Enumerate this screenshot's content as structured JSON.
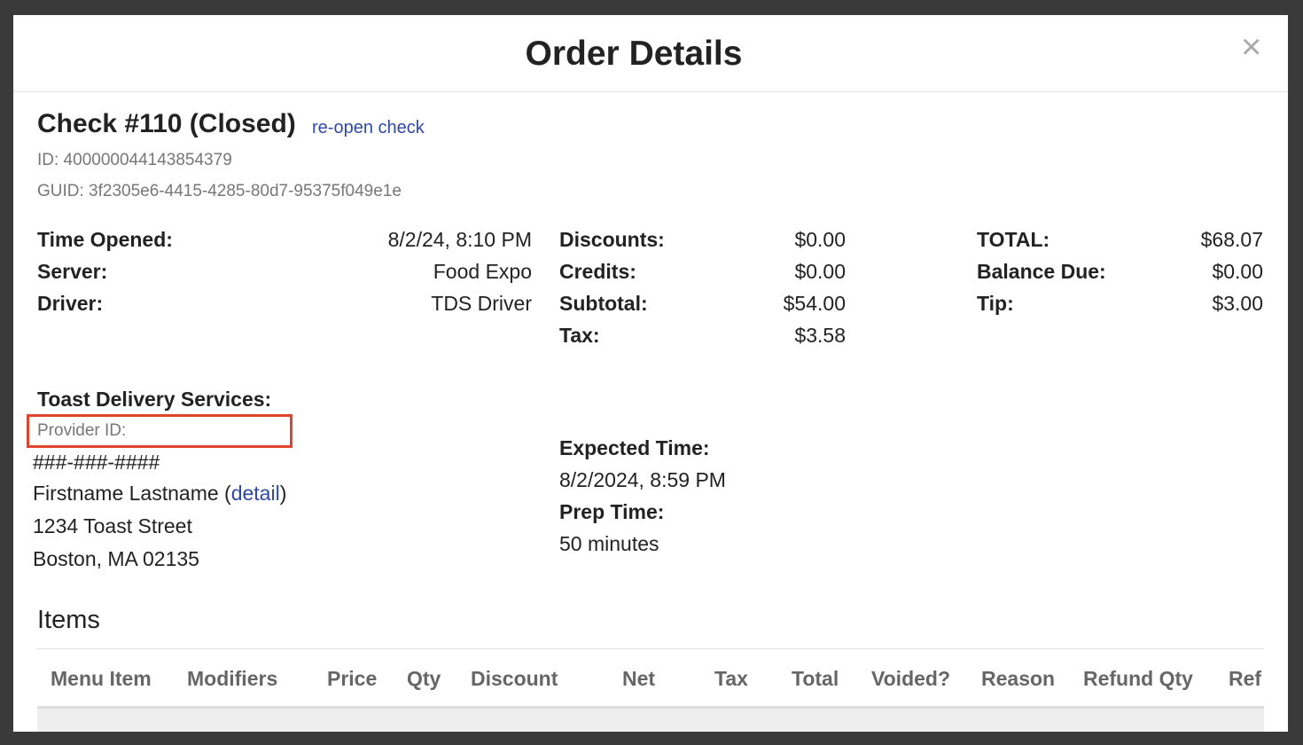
{
  "modal": {
    "title": "Order Details",
    "close": "×"
  },
  "check": {
    "heading": "Check #110 (Closed)",
    "reopen": "re-open check",
    "id": "ID: 400000044143854379",
    "guid": "GUID: 3f2305e6-4415-4285-80d7-95375f049e1e"
  },
  "summary": {
    "columns": [
      [
        {
          "label": "Time Opened:",
          "value": "8/2/24, 8:10 PM"
        },
        {
          "label": "Server:",
          "value": "Food Expo"
        },
        {
          "label": "Driver:",
          "value": "TDS Driver"
        }
      ],
      [
        {
          "label": "Discounts:",
          "value": "$0.00"
        },
        {
          "label": "Credits:",
          "value": "$0.00"
        },
        {
          "label": "Subtotal:",
          "value": "$54.00"
        },
        {
          "label": "Tax:",
          "value": "$3.58"
        }
      ],
      [
        {
          "label": "TOTAL:",
          "value": "$68.07"
        },
        {
          "label": "Balance Due:",
          "value": "$0.00"
        },
        {
          "label": "Tip:",
          "value": "$3.00"
        }
      ]
    ]
  },
  "delivery": {
    "title": "Toast Delivery Services:",
    "provider_id": "Provider ID:",
    "phone": "###-###-####",
    "name": "Firstname Lastname (",
    "detail": "detail",
    "name_end": ")",
    "street": "1234 Toast Street",
    "city": "Boston, MA 02135",
    "expected_label": "Expected Time:",
    "expected_value": "8/2/2024, 8:59 PM",
    "prep_label": "Prep Time:",
    "prep_value": "50 minutes"
  },
  "items": {
    "title": "Items",
    "headers": [
      "Menu Item",
      "Modifiers",
      "Price",
      "Qty",
      "Discount",
      "Net",
      "Tax",
      "Total",
      "Voided?",
      "Reason",
      "Refund Qty",
      "Ref"
    ]
  }
}
